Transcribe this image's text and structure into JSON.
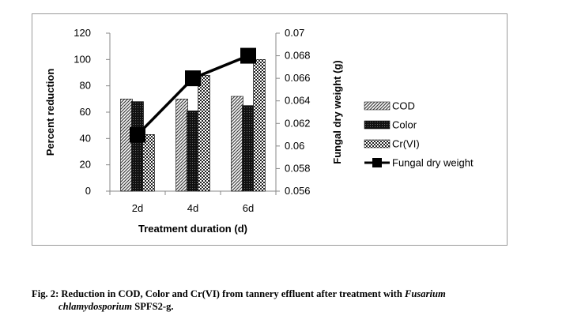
{
  "chart_data": {
    "type": "bar",
    "title": "",
    "xlabel": "Treatment duration (d)",
    "ylabel": "Percent reduction",
    "y2label": "Fungal dry weight (g)",
    "categories": [
      "2d",
      "4d",
      "6d"
    ],
    "ylim": [
      0,
      120
    ],
    "yticks": [
      "0",
      "20",
      "40",
      "60",
      "80",
      "100",
      "120"
    ],
    "y2lim": [
      0.056,
      0.07
    ],
    "y2ticks": [
      "0.056",
      "0.058",
      "0.06",
      "0.062",
      "0.064",
      "0.066",
      "0.068",
      "0.07"
    ],
    "series": [
      {
        "name": "COD",
        "type": "bar",
        "values": [
          70,
          70,
          72
        ],
        "color": "#555555"
      },
      {
        "name": "Color",
        "type": "bar",
        "values": [
          68,
          61,
          65
        ],
        "color": "#1a1a1a"
      },
      {
        "name": "Cr(VI)",
        "type": "bar",
        "values": [
          43,
          88,
          100
        ],
        "color": "#888888"
      },
      {
        "name": "Fungal dry weight",
        "type": "line",
        "axis": "secondary",
        "values": [
          0.061,
          0.066,
          0.068
        ],
        "color": "#000000"
      }
    ],
    "legend": "right",
    "grid": false
  },
  "caption": {
    "prefix": "Fig. 2: Reduction in COD, Color and Cr(VI) from tannery effluent after treatment with ",
    "italic1": "Fusarium",
    "italic2": "chlamydosporium",
    "suffix": " SPFS2-g."
  }
}
